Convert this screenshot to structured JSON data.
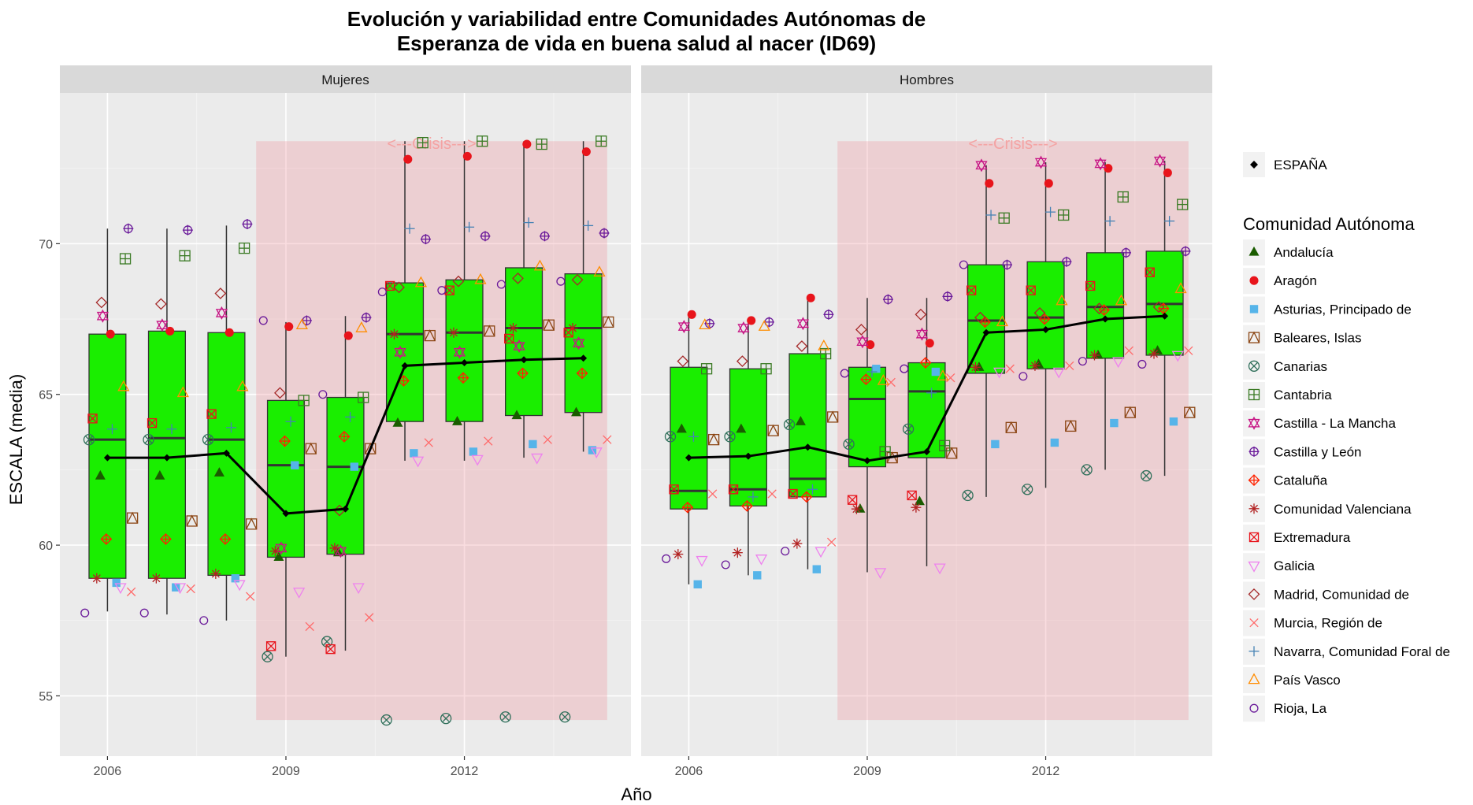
{
  "chart_data": {
    "type": "boxplot",
    "title_lines": [
      "Evolución y variabilidad entre Comunidades Autónomas de",
      "Esperanza de vida en buena salud al nacer (ID69)"
    ],
    "xlabel": "Año",
    "ylabel": "ESCALA (media)",
    "ylim": [
      53,
      75
    ],
    "y_ticks": [
      55,
      60,
      65,
      70
    ],
    "x_ticks": [
      2006,
      2009,
      2012
    ],
    "xlim": [
      2005.2,
      2014.8
    ],
    "crisis_label": "<---Crisis--->",
    "crisis_range": {
      "x": [
        2008.5,
        2014.4
      ],
      "y": [
        54.2,
        73.4
      ]
    },
    "legend_espana_label": "ESPAÑA",
    "legend_title": "Comunidad Autónoma",
    "regions": [
      {
        "name": "Andalucía",
        "shape": "triangle-filled",
        "color": "#1a5c00",
        "offset": -0.12
      },
      {
        "name": "Aragón",
        "shape": "circle-filled",
        "color": "#e8141b",
        "offset": 0.05
      },
      {
        "name": "Asturias, Principado de",
        "shape": "square-filled",
        "color": "#56b4e9",
        "offset": 0.15
      },
      {
        "name": "Baleares, Islas",
        "shape": "square-triangle",
        "color": "#8b4513",
        "offset": 0.42
      },
      {
        "name": "Canarias",
        "shape": "circle-x",
        "color": "#2f6f5a",
        "offset": -0.31
      },
      {
        "name": "Cantabria",
        "shape": "square-plus",
        "color": "#3a7a24",
        "offset": 0.3
      },
      {
        "name": "Castilla - La Mancha",
        "shape": "star-david",
        "color": "#c71585",
        "offset": -0.08
      },
      {
        "name": "Castilla y León",
        "shape": "circle-plus",
        "color": "#6a1a9a",
        "offset": 0.35
      },
      {
        "name": "Cataluña",
        "shape": "diamond-plus",
        "color": "#ff2200",
        "offset": -0.02
      },
      {
        "name": "Comunidad Valenciana",
        "shape": "asterisk",
        "color": "#b22222",
        "offset": -0.18
      },
      {
        "name": "Extremadura",
        "shape": "square-x",
        "color": "#e8141b",
        "offset": -0.25
      },
      {
        "name": "Galicia",
        "shape": "triangle-down",
        "color": "#ee82ee",
        "offset": 0.22
      },
      {
        "name": "Madrid, Comunidad de",
        "shape": "diamond",
        "color": "#a52a2a",
        "offset": -0.1
      },
      {
        "name": "Murcia, Región de",
        "shape": "x",
        "color": "#ff6b6b",
        "offset": 0.4
      },
      {
        "name": "Navarra, Comunidad Foral de",
        "shape": "plus",
        "color": "#4682b4",
        "offset": 0.08
      },
      {
        "name": "País Vasco",
        "shape": "triangle-open",
        "color": "#ff8c00",
        "offset": 0.27
      },
      {
        "name": "Rioja, La",
        "shape": "circle-open",
        "color": "#6a1a9a",
        "offset": -0.38
      }
    ],
    "panels": [
      {
        "label": "Mujeres",
        "years": [
          2006,
          2007,
          2008,
          2009,
          2010,
          2011,
          2012,
          2013,
          2014
        ],
        "boxes": [
          {
            "year": 2006,
            "whisker_low": 57.8,
            "q1": 58.9,
            "median": 63.5,
            "q3": 67.0,
            "whisker_high": 70.5
          },
          {
            "year": 2007,
            "whisker_low": 57.7,
            "q1": 58.9,
            "median": 63.55,
            "q3": 67.1,
            "whisker_high": 70.5
          },
          {
            "year": 2008,
            "whisker_low": 57.5,
            "q1": 59.0,
            "median": 63.5,
            "q3": 67.05,
            "whisker_high": 70.6
          },
          {
            "year": 2009,
            "whisker_low": 56.3,
            "q1": 59.6,
            "median": 62.65,
            "q3": 64.8,
            "whisker_high": 67.4
          },
          {
            "year": 2010,
            "whisker_low": 56.5,
            "q1": 59.7,
            "median": 62.6,
            "q3": 64.9,
            "whisker_high": 67.6
          },
          {
            "year": 2011,
            "whisker_low": 62.8,
            "q1": 64.1,
            "median": 67.0,
            "q3": 68.7,
            "whisker_high": 73.4
          },
          {
            "year": 2012,
            "whisker_low": 62.8,
            "q1": 64.1,
            "median": 67.05,
            "q3": 68.8,
            "whisker_high": 73.4
          },
          {
            "year": 2013,
            "whisker_low": 62.9,
            "q1": 64.3,
            "median": 67.2,
            "q3": 69.2,
            "whisker_high": 73.4
          },
          {
            "year": 2014,
            "whisker_low": 63.1,
            "q1": 64.4,
            "median": 67.2,
            "q3": 69.0,
            "whisker_high": 73.4
          }
        ],
        "espana": [
          62.9,
          62.9,
          63.05,
          61.05,
          61.2,
          65.95,
          66.05,
          66.15,
          66.2
        ],
        "values": {
          "Andalucía": [
            62.3,
            62.3,
            62.4,
            59.6,
            59.75,
            64.05,
            64.1,
            64.3,
            64.4
          ],
          "Aragón": [
            67.0,
            67.1,
            67.05,
            67.25,
            66.95,
            72.8,
            72.9,
            73.3,
            73.05
          ],
          "Asturias, Principado de": [
            58.75,
            58.6,
            58.9,
            62.65,
            62.6,
            63.05,
            63.1,
            63.35,
            63.15
          ],
          "Baleares, Islas": [
            60.9,
            60.8,
            60.7,
            63.2,
            63.2,
            66.95,
            67.1,
            67.3,
            67.4
          ],
          "Canarias": [
            63.5,
            63.5,
            63.5,
            56.3,
            56.8,
            54.2,
            54.25,
            54.3,
            54.3
          ],
          "Cantabria": [
            69.5,
            69.6,
            69.85,
            64.8,
            64.9,
            73.35,
            73.4,
            73.3,
            73.4
          ],
          "Castilla - La Mancha": [
            67.6,
            67.3,
            67.7,
            59.9,
            59.8,
            66.4,
            66.4,
            66.6,
            66.7
          ],
          "Castilla y León": [
            70.5,
            70.45,
            70.65,
            67.45,
            67.55,
            70.15,
            70.25,
            70.25,
            70.35
          ],
          "Cataluña": [
            60.2,
            60.2,
            60.2,
            63.45,
            63.6,
            65.45,
            65.55,
            65.7,
            65.7
          ],
          "Comunidad Valenciana": [
            58.9,
            58.9,
            59.05,
            59.8,
            59.9,
            67.0,
            67.05,
            67.2,
            67.2
          ],
          "Extremadura": [
            64.2,
            64.05,
            64.35,
            56.65,
            56.55,
            68.6,
            68.45,
            66.85,
            67.05
          ],
          "Galicia": [
            58.6,
            58.6,
            58.7,
            58.45,
            58.6,
            62.8,
            62.85,
            62.9,
            63.1
          ],
          "Madrid, Comunidad de": [
            68.05,
            68.0,
            68.35,
            65.05,
            61.15,
            68.55,
            68.75,
            68.85,
            68.8
          ],
          "Murcia, Región de": [
            58.45,
            58.55,
            58.3,
            57.3,
            57.6,
            63.4,
            63.45,
            63.5,
            63.5
          ],
          "Navarra, Comunidad Foral de": [
            63.85,
            63.85,
            63.9,
            64.1,
            64.25,
            70.5,
            70.55,
            70.7,
            70.6
          ],
          "País Vasco": [
            65.25,
            65.05,
            65.25,
            67.3,
            67.2,
            68.7,
            68.8,
            69.25,
            69.05
          ],
          "Rioja, La": [
            57.75,
            57.75,
            57.5,
            67.45,
            65.0,
            68.4,
            68.45,
            68.65,
            68.75
          ]
        }
      },
      {
        "label": "Hombres",
        "years": [
          2006,
          2007,
          2008,
          2009,
          2010,
          2011,
          2012,
          2013,
          2014
        ],
        "boxes": [
          {
            "year": 2006,
            "whisker_low": 58.7,
            "q1": 61.2,
            "median": 61.8,
            "q3": 65.9,
            "whisker_high": 67.6
          },
          {
            "year": 2007,
            "whisker_low": 59.0,
            "q1": 61.3,
            "median": 61.85,
            "q3": 65.85,
            "whisker_high": 67.45
          },
          {
            "year": 2008,
            "whisker_low": 59.2,
            "q1": 61.6,
            "median": 62.2,
            "q3": 66.35,
            "whisker_high": 68.2
          },
          {
            "year": 2009,
            "whisker_low": 59.1,
            "q1": 62.6,
            "median": 64.85,
            "q3": 65.9,
            "whisker_high": 68.2
          },
          {
            "year": 2010,
            "whisker_low": 59.3,
            "q1": 62.9,
            "median": 65.1,
            "q3": 66.05,
            "whisker_high": 68.2
          },
          {
            "year": 2011,
            "whisker_low": 61.6,
            "q1": 65.7,
            "median": 67.45,
            "q3": 69.3,
            "whisker_high": 72.6
          },
          {
            "year": 2012,
            "whisker_low": 61.9,
            "q1": 65.85,
            "median": 67.55,
            "q3": 69.4,
            "whisker_high": 72.7
          },
          {
            "year": 2013,
            "whisker_low": 62.5,
            "q1": 66.2,
            "median": 67.9,
            "q3": 69.7,
            "whisker_high": 72.7
          },
          {
            "year": 2014,
            "whisker_low": 62.3,
            "q1": 66.3,
            "median": 68.0,
            "q3": 69.75,
            "whisker_high": 72.75
          }
        ],
        "espana": [
          62.9,
          62.95,
          63.25,
          62.8,
          63.1,
          67.05,
          67.15,
          67.5,
          67.6
        ],
        "values": {
          "Andalucía": [
            63.85,
            63.85,
            64.1,
            61.2,
            61.45,
            65.9,
            66.0,
            66.3,
            66.45
          ],
          "Aragón": [
            67.65,
            67.45,
            68.2,
            66.65,
            66.7,
            72.0,
            72.0,
            72.5,
            72.35
          ],
          "Asturias, Principado de": [
            58.7,
            59.0,
            59.2,
            65.85,
            65.75,
            63.35,
            63.4,
            64.05,
            64.1
          ],
          "Baleares, Islas": [
            63.5,
            63.8,
            64.25,
            62.9,
            63.05,
            63.9,
            63.95,
            64.4,
            64.4
          ],
          "Canarias": [
            63.6,
            63.6,
            64.0,
            63.35,
            63.85,
            61.65,
            61.85,
            62.5,
            62.3
          ],
          "Cantabria": [
            65.85,
            65.85,
            66.35,
            63.1,
            63.3,
            70.85,
            70.95,
            71.55,
            71.3
          ],
          "Castilla - La Mancha": [
            67.25,
            67.2,
            67.35,
            66.75,
            67.0,
            72.6,
            72.7,
            72.65,
            72.75
          ],
          "Castilla y León": [
            67.35,
            67.4,
            67.65,
            68.15,
            68.25,
            69.3,
            69.4,
            69.7,
            69.75
          ],
          "Cataluña": [
            61.25,
            61.3,
            61.6,
            65.5,
            66.05,
            67.4,
            67.5,
            67.8,
            67.85
          ],
          "Comunidad Valenciana": [
            59.7,
            59.75,
            60.05,
            61.2,
            61.25,
            65.9,
            65.95,
            66.3,
            66.35
          ],
          "Extremadura": [
            61.85,
            61.85,
            61.7,
            61.5,
            61.65,
            68.45,
            68.45,
            68.6,
            69.05
          ],
          "Galicia": [
            59.5,
            59.55,
            59.8,
            59.1,
            59.25,
            65.75,
            65.75,
            66.1,
            66.3
          ],
          "Madrid, Comunidad de": [
            66.1,
            66.1,
            66.6,
            67.15,
            67.65,
            67.55,
            67.7,
            67.85,
            67.9
          ],
          "Murcia, Región de": [
            61.7,
            61.7,
            60.1,
            65.4,
            65.55,
            65.85,
            65.95,
            66.45,
            66.45
          ],
          "Navarra, Comunidad Foral de": [
            63.6,
            61.6,
            61.85,
            65.75,
            65.05,
            70.95,
            71.05,
            70.75,
            70.75
          ],
          "País Vasco": [
            67.3,
            67.25,
            66.6,
            65.45,
            65.6,
            67.4,
            68.1,
            68.1,
            68.5
          ],
          "Rioja, La": [
            59.55,
            59.35,
            59.8,
            65.7,
            65.85,
            69.3,
            65.6,
            66.1,
            66.0
          ]
        }
      }
    ]
  }
}
